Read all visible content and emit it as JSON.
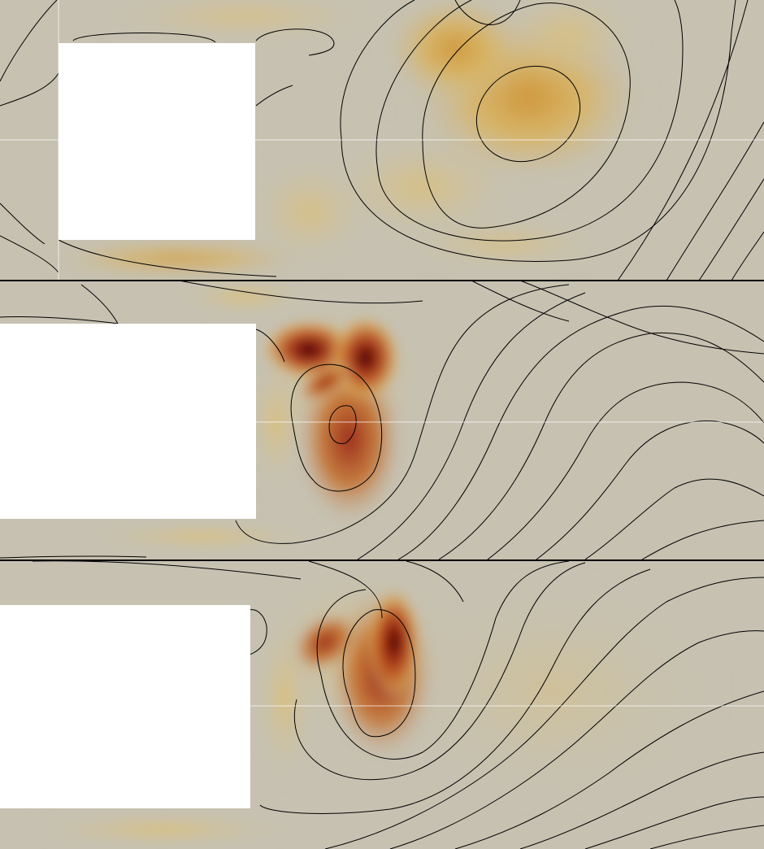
{
  "figure": {
    "panels": [
      {
        "name": "panel-top"
      },
      {
        "name": "panel-middle"
      },
      {
        "name": "panel-bottom"
      }
    ],
    "colors": {
      "background_field": "#c6c1b1",
      "low_intensity": "#d8c48a",
      "mid_intensity": "#d7a23c",
      "high_intensity": "#9a2414",
      "peak_intensity": "#3a0000",
      "obstacle": "#ffffff",
      "streamline": "#000000",
      "panel_divider": "#000000",
      "mesh_seam": "#ffffff"
    }
  }
}
